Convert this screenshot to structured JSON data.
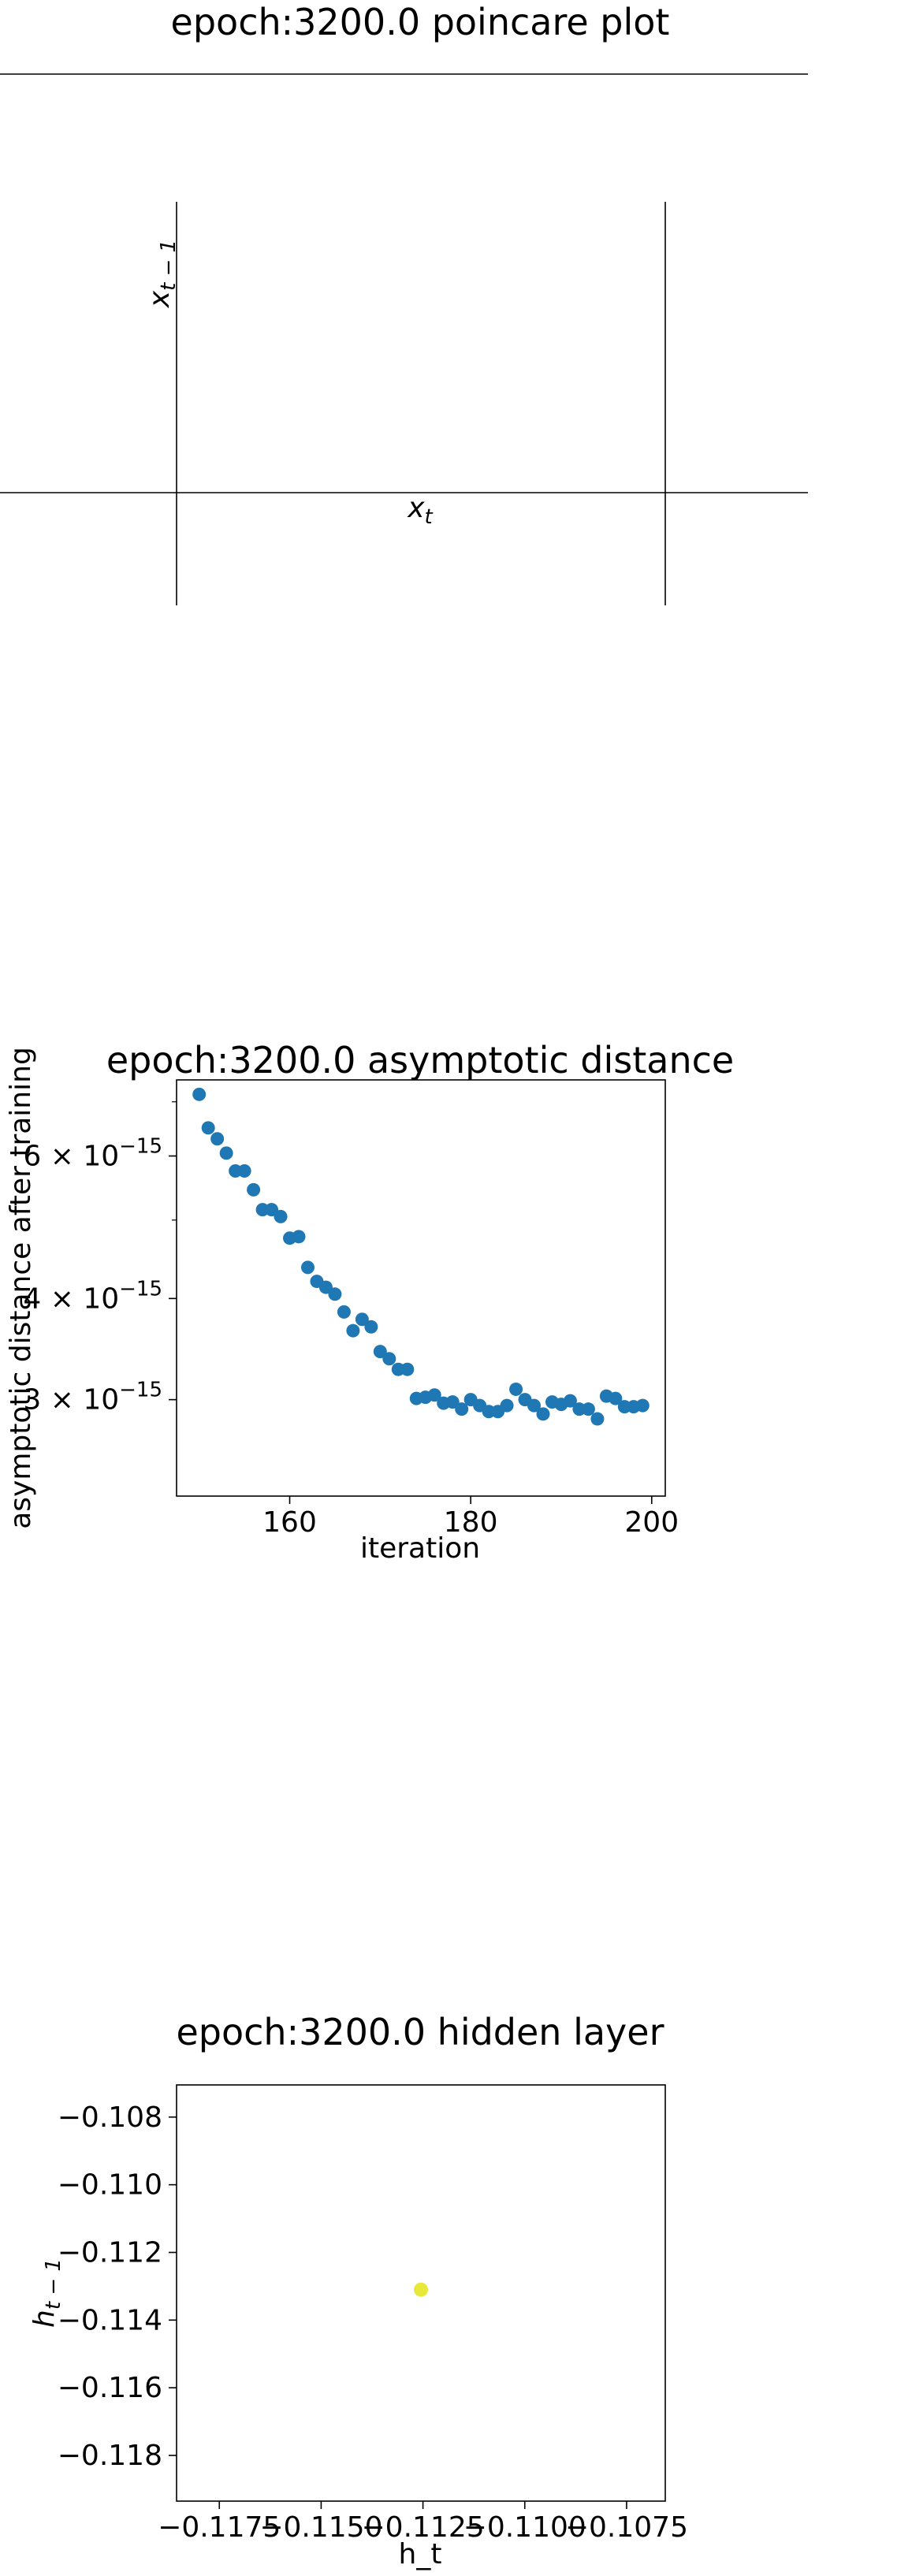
{
  "chart_data": [
    {
      "type": "line",
      "title": "epoch:3200.0 poincare plot",
      "xlabel": "x_t",
      "ylabel": "x_{t-1}",
      "series": []
    },
    {
      "type": "scatter",
      "title": "epoch:3200.0 asymptotic distance",
      "xlabel": "iteration",
      "ylabel": "asymptotic distance after training",
      "yscale": "log",
      "xlim": [
        147.5,
        201.5
      ],
      "ylim": [
        2.28e-15,
        7.45e-15
      ],
      "xticks": [
        160,
        180,
        200
      ],
      "xtick_labels": [
        "160",
        "180",
        "200"
      ],
      "yticks_major": [
        3e-15,
        4e-15,
        6e-15
      ],
      "ytick_labels": [
        "3 × 10",
        "4 × 10",
        "6 × 10"
      ],
      "ytick_exponent": "−15",
      "color": "#1f77b4",
      "x": [
        150,
        151,
        152,
        153,
        154,
        155,
        156,
        157,
        158,
        159,
        160,
        161,
        162,
        163,
        164,
        165,
        166,
        167,
        168,
        169,
        170,
        171,
        172,
        173,
        174,
        175,
        176,
        177,
        178,
        179,
        180,
        181,
        182,
        183,
        184,
        185,
        186,
        187,
        188,
        189,
        190,
        191,
        192,
        193,
        194,
        195,
        196,
        197,
        198,
        199
      ],
      "y": [
        7.15e-15,
        6.5e-15,
        6.3e-15,
        6.05e-15,
        5.75e-15,
        5.75e-15,
        5.45e-15,
        5.15e-15,
        5.15e-15,
        5.05e-15,
        4.75e-15,
        4.77e-15,
        4.37e-15,
        4.2e-15,
        4.13e-15,
        4.05e-15,
        3.85e-15,
        3.65e-15,
        3.77e-15,
        3.69e-15,
        3.44e-15,
        3.37e-15,
        3.27e-15,
        3.27e-15,
        3.01e-15,
        3.02e-15,
        3.04e-15,
        2.97e-15,
        2.98e-15,
        2.92e-15,
        3e-15,
        2.95e-15,
        2.9e-15,
        2.9e-15,
        2.95e-15,
        3.09e-15,
        3e-15,
        2.95e-15,
        2.88e-15,
        2.98e-15,
        2.96e-15,
        2.99e-15,
        2.92e-15,
        2.92e-15,
        2.84e-15,
        3.03e-15,
        3.01e-15,
        2.94e-15,
        2.94e-15,
        2.95e-15
      ]
    },
    {
      "type": "scatter",
      "title": "epoch:3200.0 hidden layer",
      "xlabel": "h_t",
      "ylabel": "h_{t-1}",
      "xlim": [
        -0.11855,
        -0.10655
      ],
      "ylim": [
        -0.11935,
        -0.10705
      ],
      "xticks": [
        -0.1175,
        -0.115,
        -0.1125,
        -0.11,
        -0.1075
      ],
      "xtick_labels": [
        "−0.1175",
        "−0.1150",
        "−0.1125",
        "−0.1100",
        "−0.1075"
      ],
      "yticks": [
        -0.118,
        -0.116,
        -0.114,
        -0.112,
        -0.11,
        -0.108
      ],
      "ytick_labels": [
        "−0.118",
        "−0.116",
        "−0.114",
        "−0.112",
        "−0.110",
        "−0.108"
      ],
      "color": "#e8e83a",
      "points": [
        {
          "x": -0.11255,
          "y": -0.1131
        }
      ]
    }
  ]
}
